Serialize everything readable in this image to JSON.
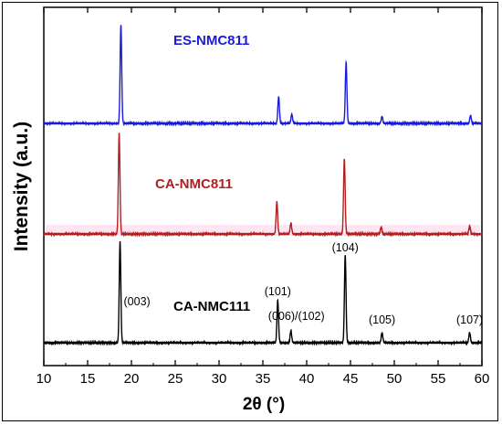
{
  "chart_data": {
    "type": "line",
    "xlabel": "2θ (°)",
    "ylabel": "Intensity (a.u.)",
    "xlim": [
      10,
      60
    ],
    "x_ticks": [
      "10",
      "15",
      "20",
      "25",
      "30",
      "35",
      "40",
      "45",
      "50",
      "55",
      "60"
    ],
    "grid": false,
    "legend": "none",
    "series": [
      {
        "name": "ES-NMC811",
        "color": "#1a1adc",
        "peaks": [
          [
            18.8,
            1.0
          ],
          [
            36.8,
            0.27
          ],
          [
            38.3,
            0.09
          ],
          [
            44.5,
            0.62
          ],
          [
            48.6,
            0.07
          ],
          [
            58.7,
            0.08
          ]
        ]
      },
      {
        "name": "CA-NMC811",
        "color": "#b02020",
        "peaks": [
          [
            18.6,
            1.0
          ],
          [
            36.6,
            0.32
          ],
          [
            38.2,
            0.11
          ],
          [
            44.3,
            0.75
          ],
          [
            48.5,
            0.07
          ],
          [
            58.6,
            0.08
          ]
        ]
      },
      {
        "name": "CA-NMC111",
        "color": "#000000",
        "peaks": [
          [
            18.7,
            1.0
          ],
          [
            36.7,
            0.42
          ],
          [
            38.2,
            0.12
          ],
          [
            44.4,
            0.87
          ],
          [
            48.6,
            0.1
          ],
          [
            58.6,
            0.1
          ]
        ]
      }
    ],
    "annotations": [
      {
        "text": "(003)",
        "x": 18.7
      },
      {
        "text": "(101)",
        "x": 36.7
      },
      {
        "text": "(006)/(102)",
        "x": 38.2
      },
      {
        "text": "(104)",
        "x": 44.4
      },
      {
        "text": "(105)",
        "x": 48.6
      },
      {
        "text": "(107)",
        "x": 58.6
      }
    ]
  }
}
